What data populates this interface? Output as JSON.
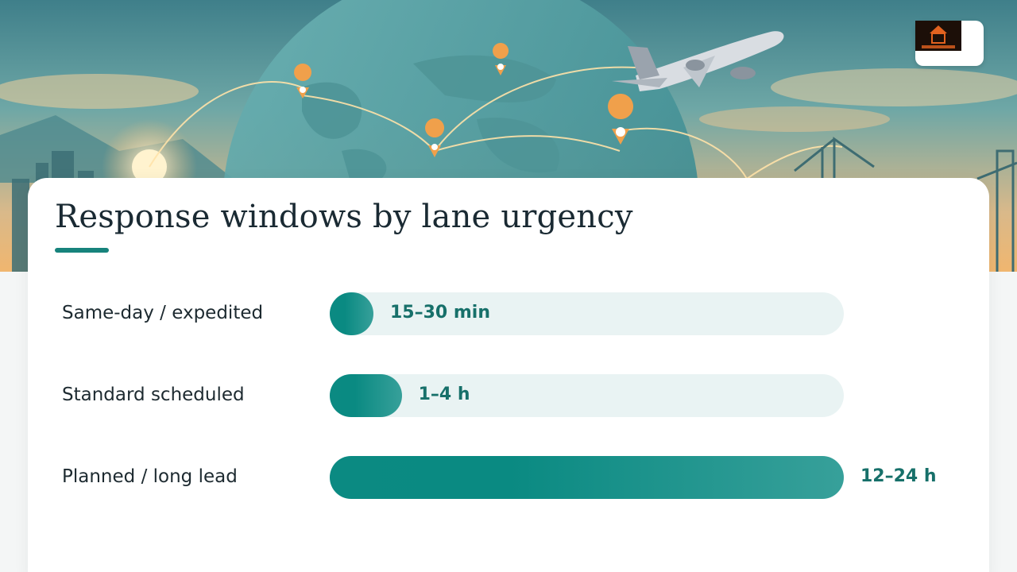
{
  "colors": {
    "accent": "#17837c",
    "bar_fill": "#0b8a82",
    "track": "#e9f3f3",
    "value_text": "#17706a",
    "title_text": "#1a2a33"
  },
  "hero": {
    "icons": [
      "globe-icon",
      "airplane-icon",
      "location-pin-icon",
      "port-crane-icon"
    ]
  },
  "chart_data": {
    "type": "bar",
    "orientation": "horizontal",
    "title": "Response windows by lane urgency",
    "categories": [
      "Same-day / expedited",
      "Standard scheduled",
      "Planned / long lead"
    ],
    "value_labels": [
      "15–30 min",
      "1–4 h",
      "12–24 h"
    ],
    "values_relative": [
      0.085,
      0.14,
      1.0
    ],
    "grid": false,
    "legend": "none"
  }
}
